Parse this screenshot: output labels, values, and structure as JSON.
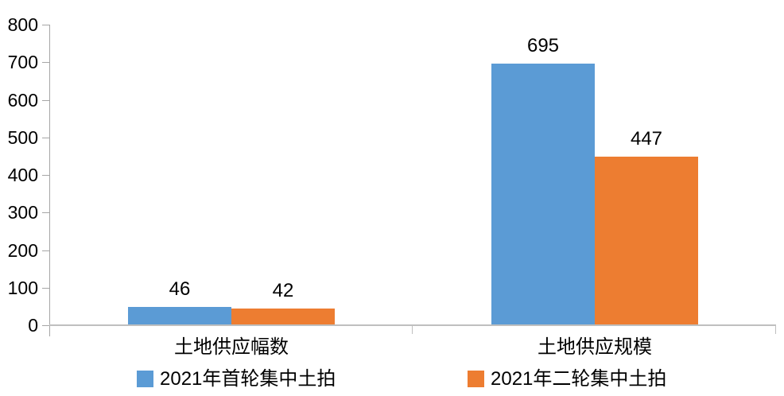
{
  "chart_data": {
    "type": "bar",
    "title": "",
    "xlabel": "",
    "ylabel": "",
    "categories": [
      "土地供应幅数",
      "土地供应规模"
    ],
    "series": [
      {
        "name": "2021年首轮集中土拍",
        "color": "#5B9BD5",
        "values": [
          46,
          695
        ]
      },
      {
        "name": "2021年二轮集中土拍",
        "color": "#ED7D31",
        "values": [
          42,
          447
        ]
      }
    ],
    "ylim": [
      0,
      800
    ],
    "yticks": [
      0,
      100,
      200,
      300,
      400,
      500,
      600,
      700,
      800
    ],
    "grid": false,
    "data_labels": true,
    "legend_position": "bottom",
    "axis_colors": {
      "y_axis": "#A6A6A6",
      "x_axis": "#BFBFBF"
    },
    "text_color": "#000000"
  }
}
